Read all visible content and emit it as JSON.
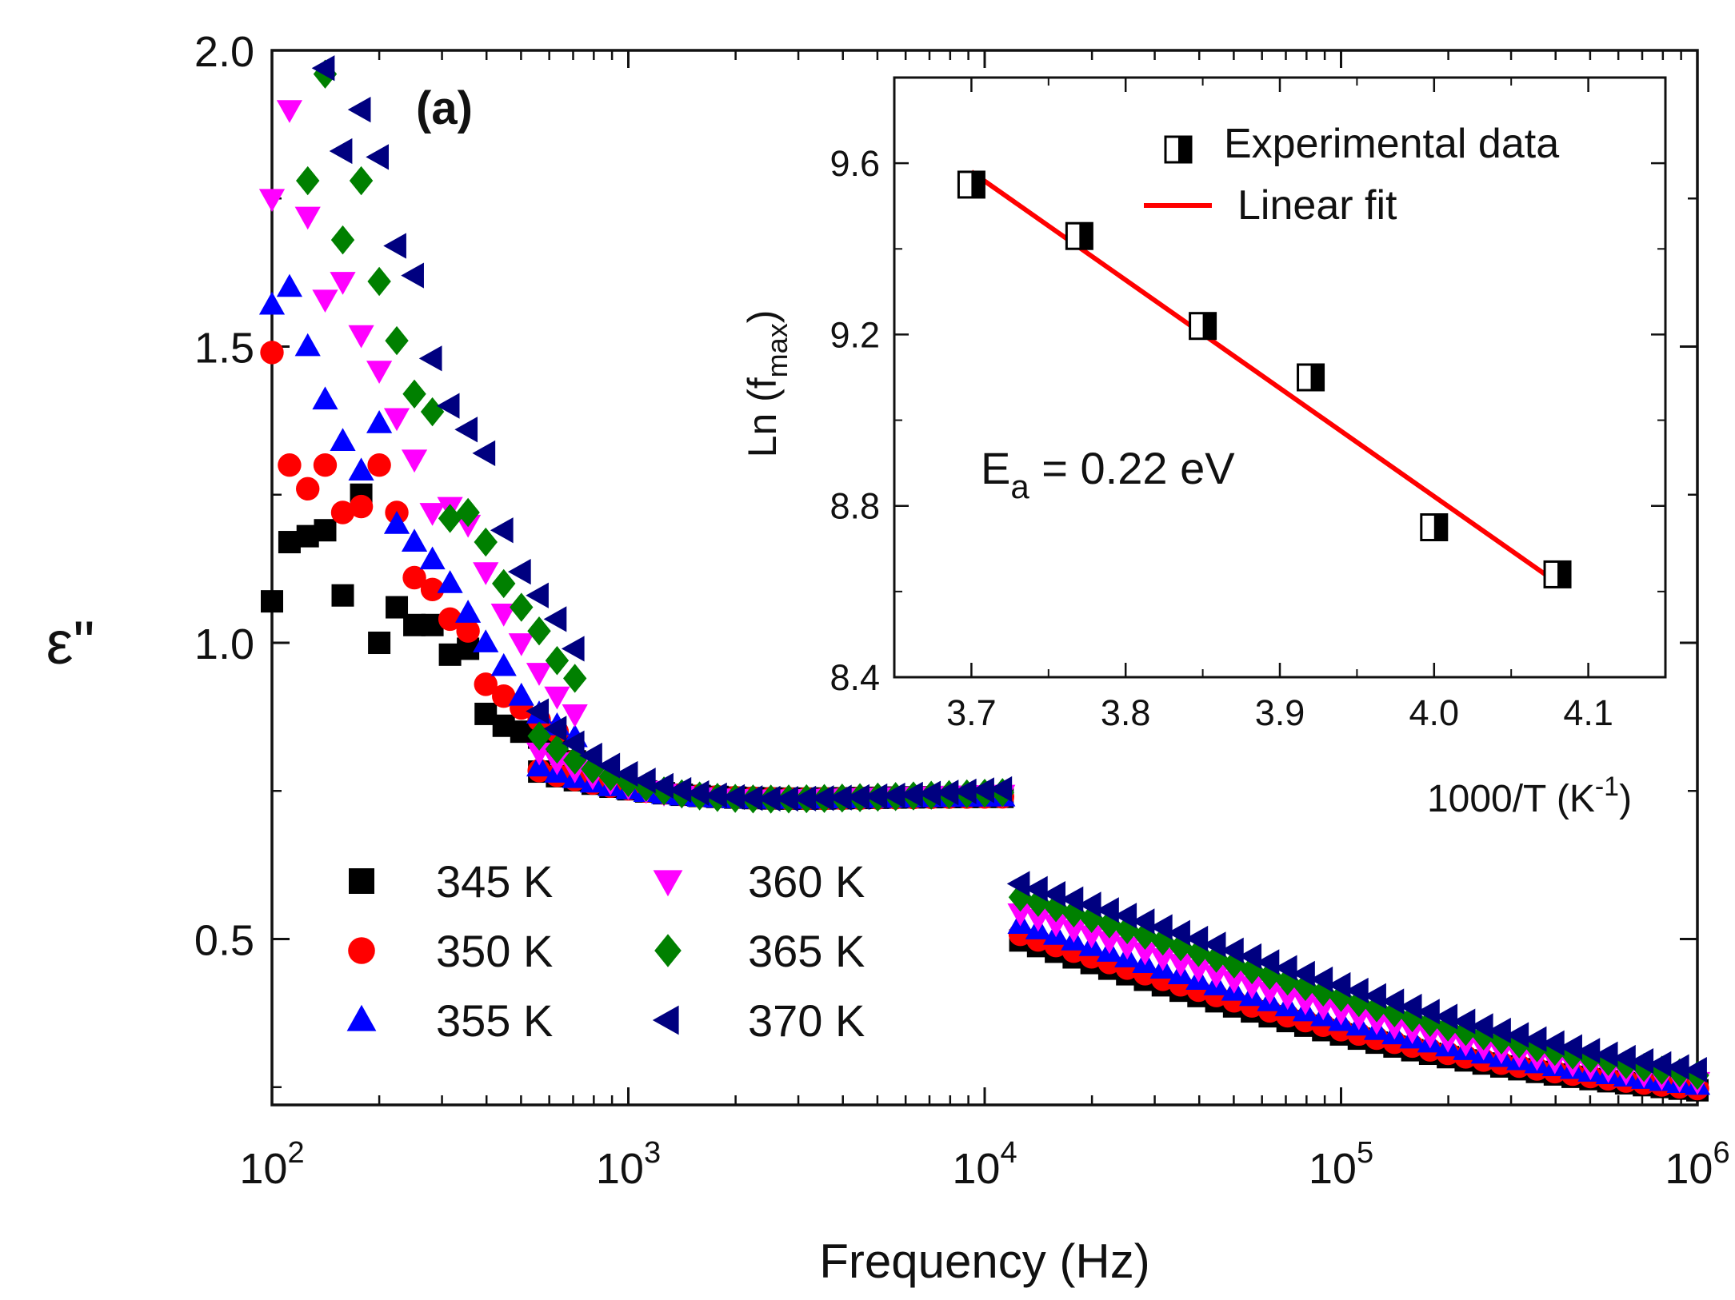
{
  "chart_data": [
    {
      "type": "scatter",
      "panel_label": "(a)",
      "xlabel": "Frequency (Hz)",
      "ylabel": "ε\"",
      "xscale": "log",
      "xlim": [
        100,
        1000000
      ],
      "ylim": [
        0.22,
        2.0
      ],
      "x_ticks": [
        {
          "base": "10",
          "exp": "2"
        },
        {
          "base": "10",
          "exp": "3"
        },
        {
          "base": "10",
          "exp": "4"
        },
        {
          "base": "10",
          "exp": "5"
        },
        {
          "base": "10",
          "exp": "6"
        }
      ],
      "y_tick_labels": [
        "0.5",
        "1.0",
        "1.5",
        "2.0"
      ],
      "legend_placement": "bottom-left",
      "series": [
        {
          "name": "345 K",
          "marker": "square",
          "color": "#000000",
          "params": {
            "lf": 1.02,
            "lf_exp": 0.45,
            "fq": 0.2,
            "kh": 0.0,
            "pk": 0.74,
            "pk_f": 11000,
            "hf_exp": 0.53,
            "hf_w": 9.0,
            "hf_sh": 1.0
          },
          "low_freq_points": [
            [
              100,
              1.07
            ],
            [
              112,
              1.17
            ],
            [
              126,
              1.18
            ],
            [
              141,
              1.19
            ],
            [
              158,
              1.08
            ],
            [
              178,
              1.25
            ],
            [
              200,
              1.0
            ],
            [
              224,
              1.06
            ],
            [
              251,
              1.03
            ],
            [
              282,
              1.03
            ],
            [
              316,
              0.98
            ],
            [
              355,
              0.99
            ],
            [
              398,
              0.88
            ],
            [
              447,
              0.86
            ],
            [
              501,
              0.85
            ],
            [
              562,
              0.84
            ],
            [
              631,
              0.83
            ],
            [
              708,
              0.8
            ]
          ]
        },
        {
          "name": "350 K",
          "marker": "circle",
          "color": "#ff0000",
          "params": {
            "lf": 1.03,
            "lf_exp": 0.45,
            "fq": 0.2,
            "kh": 0.0,
            "pk": 0.74,
            "pk_f": 12000,
            "hf_exp": 0.53,
            "hf_w": 9.0,
            "hf_sh": 1.04
          },
          "low_freq_points": [
            [
              100,
              1.49
            ],
            [
              112,
              1.3
            ],
            [
              126,
              1.26
            ],
            [
              141,
              1.3
            ],
            [
              158,
              1.22
            ],
            [
              178,
              1.23
            ],
            [
              200,
              1.3
            ],
            [
              224,
              1.22
            ],
            [
              251,
              1.11
            ],
            [
              282,
              1.09
            ],
            [
              316,
              1.04
            ],
            [
              355,
              1.02
            ],
            [
              398,
              0.93
            ],
            [
              447,
              0.91
            ],
            [
              501,
              0.89
            ],
            [
              562,
              0.87
            ],
            [
              631,
              0.85
            ],
            [
              708,
              0.8
            ]
          ]
        },
        {
          "name": "355 K",
          "marker": "triangle-up",
          "color": "#0000ff",
          "params": {
            "lf": 1.27,
            "lf_exp": 0.55,
            "fq": 0.2,
            "kh": 0.0,
            "pk": 0.74,
            "pk_f": 14000,
            "hf_exp": 0.53,
            "hf_w": 9.0,
            "hf_sh": 1.1
          },
          "low_freq_points": [
            [
              100,
              1.57
            ],
            [
              112,
              1.6
            ],
            [
              126,
              1.5
            ],
            [
              141,
              1.41
            ],
            [
              158,
              1.34
            ],
            [
              178,
              1.29
            ],
            [
              200,
              1.37
            ],
            [
              224,
              1.2
            ],
            [
              251,
              1.17
            ],
            [
              282,
              1.14
            ],
            [
              316,
              1.1
            ],
            [
              355,
              1.05
            ],
            [
              398,
              1.0
            ],
            [
              447,
              0.96
            ],
            [
              501,
              0.91
            ],
            [
              562,
              0.88
            ],
            [
              631,
              0.86
            ],
            [
              708,
              0.84
            ]
          ]
        },
        {
          "name": "360 K",
          "marker": "triangle-down",
          "color": "#ff00ff",
          "params": {
            "lf": 1.7,
            "lf_exp": 0.65,
            "fq": 0.21,
            "kh": 0.0,
            "pk": 0.745,
            "pk_f": 16000,
            "hf_exp": 0.53,
            "hf_w": 9.0,
            "hf_sh": 1.18
          },
          "low_freq_points": [
            [
              100,
              1.75
            ],
            [
              112,
              1.9
            ],
            [
              126,
              1.72
            ],
            [
              141,
              1.58
            ],
            [
              158,
              1.61
            ],
            [
              178,
              1.52
            ],
            [
              200,
              1.46
            ],
            [
              224,
              1.38
            ],
            [
              251,
              1.31
            ],
            [
              282,
              1.22
            ],
            [
              316,
              1.23
            ],
            [
              355,
              1.2
            ],
            [
              398,
              1.12
            ],
            [
              447,
              1.05
            ],
            [
              501,
              1.0
            ],
            [
              562,
              0.95
            ],
            [
              631,
              0.91
            ],
            [
              708,
              0.88
            ]
          ]
        },
        {
          "name": "365 K",
          "marker": "diamond",
          "color": "#008000",
          "params": {
            "lf": 2.05,
            "lf_exp": 0.7,
            "fq": 0.22,
            "kh": 0.3,
            "pk": 0.75,
            "pk_f": 20000,
            "hf_exp": 0.53,
            "hf_w": 9.0,
            "hf_sh": 1.28
          },
          "low_freq_points": [
            [
              141,
              1.96
            ],
            [
              126,
              1.78
            ],
            [
              158,
              1.68
            ],
            [
              178,
              1.78
            ],
            [
              200,
              1.61
            ],
            [
              224,
              1.51
            ],
            [
              251,
              1.42
            ],
            [
              282,
              1.39
            ],
            [
              316,
              1.21
            ],
            [
              355,
              1.22
            ],
            [
              398,
              1.17
            ],
            [
              447,
              1.1
            ],
            [
              501,
              1.06
            ],
            [
              562,
              1.02
            ],
            [
              631,
              0.97
            ],
            [
              708,
              0.94
            ]
          ]
        },
        {
          "name": "370 K",
          "marker": "triangle-left",
          "color": "#000080",
          "params": {
            "lf": 2.4,
            "lf_exp": 0.72,
            "fq": 0.23,
            "kh": 0.4,
            "pk": 0.76,
            "pk_f": 23000,
            "hf_exp": 0.53,
            "hf_w": 9.0,
            "hf_sh": 1.38
          },
          "low_freq_points": [
            [
              141,
              1.97
            ],
            [
              158,
              1.83
            ],
            [
              178,
              1.9
            ],
            [
              200,
              1.82
            ],
            [
              224,
              1.67
            ],
            [
              251,
              1.62
            ],
            [
              282,
              1.48
            ],
            [
              316,
              1.4
            ],
            [
              355,
              1.36
            ],
            [
              398,
              1.32
            ],
            [
              447,
              1.19
            ],
            [
              501,
              1.12
            ],
            [
              562,
              1.08
            ],
            [
              631,
              1.04
            ],
            [
              708,
              0.99
            ]
          ]
        }
      ]
    },
    {
      "type": "scatter",
      "title": "inset",
      "xlabel_main": "1000/T (K",
      "xlabel_sup": "-1",
      "xlabel_end": ")",
      "ylabel_main": "Ln (f",
      "ylabel_sub": "max",
      "ylabel_end": ")",
      "xlim": [
        3.65,
        4.15
      ],
      "ylim": [
        8.4,
        9.8
      ],
      "x_ticks": [
        3.7,
        3.8,
        3.9,
        4.0,
        4.1
      ],
      "x_tick_labels": [
        "3.7",
        "3.8",
        "3.9",
        "4.0",
        "4.1"
      ],
      "y_ticks": [
        8.4,
        8.8,
        9.2,
        9.6
      ],
      "y_tick_labels": [
        "8.4",
        "8.8",
        "9.2",
        "9.6"
      ],
      "legend_placement": "top-right",
      "legend": {
        "data_label": "Experimental data",
        "fit_label": "Linear fit"
      },
      "annotation": {
        "symbol": "E",
        "subscript": "a",
        "text": " = 0.22 eV"
      },
      "data": {
        "x": [
          3.7,
          3.77,
          3.85,
          3.92,
          4.0,
          4.08
        ],
        "y": [
          9.55,
          9.43,
          9.22,
          9.1,
          8.75,
          8.64
        ]
      },
      "fit": {
        "x": [
          3.7,
          4.08
        ],
        "y": [
          9.58,
          8.62
        ],
        "color": "#ff0000"
      }
    }
  ]
}
